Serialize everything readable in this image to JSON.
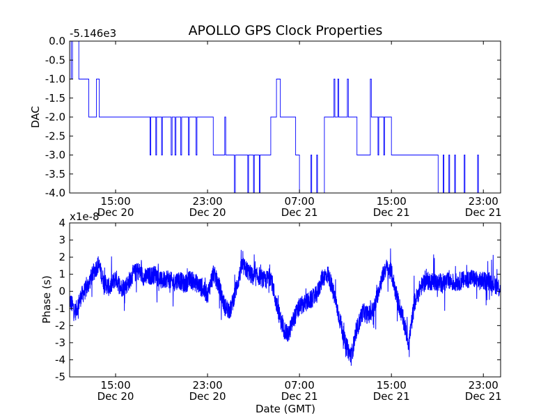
{
  "chart_data": [
    {
      "type": "line",
      "title": "APOLLO GPS Clock Properties",
      "offset_label": "-5.146e3",
      "xlabel": "",
      "ylabel": "DAC",
      "ylim": [
        -4.0,
        0.0
      ],
      "yticks": [
        "0.0",
        "-0.5",
        "-1.0",
        "-1.5",
        "-2.0",
        "-2.5",
        "-3.0",
        "-3.5",
        "-4.0"
      ],
      "xlim": [
        "2020-12-20 11:00",
        "2020-12-22 00:30"
      ],
      "xticks": [
        {
          "time": "2020-12-20 15:00",
          "time_label": "15:00",
          "date_label": "Dec 20"
        },
        {
          "time": "2020-12-20 23:00",
          "time_label": "23:00",
          "date_label": "Dec 20"
        },
        {
          "time": "2020-12-21 07:00",
          "time_label": "07:00",
          "date_label": "Dec 21"
        },
        {
          "time": "2020-12-21 15:00",
          "time_label": "15:00",
          "date_label": "Dec 21"
        },
        {
          "time": "2020-12-21 23:00",
          "time_label": "23:00",
          "date_label": "Dec 21"
        }
      ],
      "line_color": "#0000ff",
      "series": [
        {
          "x": [
            "2020-12-20 11:00",
            "2020-12-20 11:08",
            "2020-12-20 11:15",
            "2020-12-20 11:48",
            "2020-12-20 11:56",
            "2020-12-20 12:40",
            "2020-12-20 13:10",
            "2020-12-20 13:20",
            "2020-12-20 13:35",
            "2020-12-20 14:30",
            "2020-12-20 18:00",
            "2020-12-20 18:04",
            "2020-12-20 18:30",
            "2020-12-20 18:34",
            "2020-12-20 19:00",
            "2020-12-20 19:04",
            "2020-12-20 19:50",
            "2020-12-20 19:55",
            "2020-12-20 20:10",
            "2020-12-20 20:15",
            "2020-12-20 20:40",
            "2020-12-20 20:45",
            "2020-12-20 21:20",
            "2020-12-20 21:25",
            "2020-12-20 22:00",
            "2020-12-20 22:05",
            "2020-12-20 23:30",
            "2020-12-21 00:30",
            "2020-12-21 00:35",
            "2020-12-21 01:20",
            "2020-12-21 01:25",
            "2020-12-21 02:30",
            "2020-12-21 02:34",
            "2020-12-21 03:00",
            "2020-12-21 03:04",
            "2020-12-21 03:30",
            "2020-12-21 03:34",
            "2020-12-21 04:30",
            "2020-12-21 05:00",
            "2020-12-21 05:20",
            "2020-12-21 06:40",
            "2020-12-21 07:00",
            "2020-12-21 08:00",
            "2020-12-21 08:04",
            "2020-12-21 08:30",
            "2020-12-21 08:34",
            "2020-12-21 09:10",
            "2020-12-21 10:00",
            "2020-12-21 10:05",
            "2020-12-21 10:20",
            "2020-12-21 10:25",
            "2020-12-21 11:10",
            "2020-12-21 11:15",
            "2020-12-21 11:50",
            "2020-12-21 12:00",
            "2020-12-21 13:10",
            "2020-12-21 13:15",
            "2020-12-21 13:50",
            "2020-12-21 13:54",
            "2020-12-21 14:20",
            "2020-12-21 14:24",
            "2020-12-21 15:00",
            "2020-12-21 19:00",
            "2020-12-21 19:04",
            "2020-12-21 19:30",
            "2020-12-21 19:34",
            "2020-12-21 20:00",
            "2020-12-21 20:04",
            "2020-12-21 20:30",
            "2020-12-21 20:34",
            "2020-12-21 21:20",
            "2020-12-21 21:24",
            "2020-12-21 22:30",
            "2020-12-21 22:34",
            "2020-12-22 00:30"
          ],
          "y": [
            0.0,
            -1.0,
            0.0,
            -1.0,
            -1.0,
            -2.0,
            -2.0,
            -1.0,
            -2.0,
            -2.0,
            -3.0,
            -2.0,
            -3.0,
            -2.0,
            -3.0,
            -2.0,
            -3.0,
            -2.0,
            -3.0,
            -2.0,
            -3.0,
            -2.0,
            -3.0,
            -2.0,
            -3.0,
            -2.0,
            -3.0,
            -2.0,
            -3.0,
            -4.0,
            -3.0,
            -4.0,
            -3.0,
            -4.0,
            -3.0,
            -4.0,
            -3.0,
            -2.0,
            -1.0,
            -2.0,
            -3.0,
            -4.0,
            -3.0,
            -4.0,
            -3.0,
            -4.0,
            -2.0,
            -1.0,
            -2.0,
            -1.0,
            -2.0,
            -1.0,
            -2.0,
            -2.0,
            -3.0,
            -1.0,
            -2.0,
            -3.0,
            -2.0,
            -3.0,
            -2.0,
            -3.0,
            -3.0,
            -4.0,
            -3.0,
            -4.0,
            -3.0,
            -4.0,
            -3.0,
            -4.0,
            -3.0,
            -4.0,
            -3.0,
            -4.0,
            -3.0
          ]
        }
      ]
    },
    {
      "type": "line",
      "title": "",
      "offset_label": "x1e-8",
      "xlabel": "Date (GMT)",
      "ylabel": "Phase (s)",
      "ylim": [
        -5,
        4
      ],
      "yticks": [
        "4",
        "3",
        "2",
        "1",
        "0",
        "-1",
        "-2",
        "-3",
        "-4",
        "-5"
      ],
      "xlim": [
        "2020-12-20 11:00",
        "2020-12-22 00:30"
      ],
      "xticks": [
        {
          "time": "2020-12-20 15:00",
          "time_label": "15:00",
          "date_label": "Dec 20"
        },
        {
          "time": "2020-12-20 23:00",
          "time_label": "23:00",
          "date_label": "Dec 20"
        },
        {
          "time": "2020-12-21 07:00",
          "time_label": "07:00",
          "date_label": "Dec 21"
        },
        {
          "time": "2020-12-21 15:00",
          "time_label": "15:00",
          "date_label": "Dec 21"
        },
        {
          "time": "2020-12-21 23:00",
          "time_label": "23:00",
          "date_label": "Dec 21"
        }
      ],
      "line_color": "#0000ff",
      "series": [
        {
          "x": [
            "2020-12-20 11:00",
            "2020-12-20 11:30",
            "2020-12-20 12:00",
            "2020-12-20 12:30",
            "2020-12-20 13:00",
            "2020-12-20 13:30",
            "2020-12-20 14:00",
            "2020-12-20 14:30",
            "2020-12-20 15:00",
            "2020-12-20 15:30",
            "2020-12-20 16:00",
            "2020-12-20 16:30",
            "2020-12-20 17:00",
            "2020-12-20 17:30",
            "2020-12-20 18:00",
            "2020-12-20 18:30",
            "2020-12-20 19:00",
            "2020-12-20 19:30",
            "2020-12-20 20:00",
            "2020-12-20 20:30",
            "2020-12-20 21:00",
            "2020-12-20 21:30",
            "2020-12-20 22:00",
            "2020-12-20 22:30",
            "2020-12-20 23:00",
            "2020-12-20 23:30",
            "2020-12-21 00:00",
            "2020-12-21 00:30",
            "2020-12-21 01:00",
            "2020-12-21 01:30",
            "2020-12-21 02:00",
            "2020-12-21 02:30",
            "2020-12-21 03:00",
            "2020-12-21 03:30",
            "2020-12-21 04:00",
            "2020-12-21 04:30",
            "2020-12-21 05:00",
            "2020-12-21 05:30",
            "2020-12-21 06:00",
            "2020-12-21 06:30",
            "2020-12-21 07:00",
            "2020-12-21 07:30",
            "2020-12-21 08:00",
            "2020-12-21 08:30",
            "2020-12-21 09:00",
            "2020-12-21 09:30",
            "2020-12-21 10:00",
            "2020-12-21 10:30",
            "2020-12-21 11:00",
            "2020-12-21 11:30",
            "2020-12-21 12:00",
            "2020-12-21 12:30",
            "2020-12-21 13:00",
            "2020-12-21 13:30",
            "2020-12-21 14:00",
            "2020-12-21 14:30",
            "2020-12-21 15:00",
            "2020-12-21 15:30",
            "2020-12-21 16:00",
            "2020-12-21 16:30",
            "2020-12-21 17:00",
            "2020-12-21 17:30",
            "2020-12-21 18:00",
            "2020-12-21 18:30",
            "2020-12-21 19:00",
            "2020-12-21 19:30",
            "2020-12-21 20:00",
            "2020-12-21 20:30",
            "2020-12-21 21:00",
            "2020-12-21 21:30",
            "2020-12-21 22:00",
            "2020-12-21 22:30",
            "2020-12-21 23:00",
            "2020-12-21 23:30",
            "2020-12-22 00:00",
            "2020-12-22 00:30"
          ],
          "y": [
            -0.5,
            -1.2,
            -0.3,
            0.2,
            1.0,
            1.6,
            0.5,
            0.2,
            0.8,
            0.2,
            0.4,
            1.0,
            1.2,
            0.8,
            0.9,
            1.0,
            0.6,
            0.8,
            0.5,
            0.7,
            0.4,
            0.7,
            0.5,
            0.2,
            -0.2,
            1.1,
            0.3,
            -0.9,
            -1.1,
            0.2,
            1.5,
            1.2,
            0.8,
            0.9,
            0.6,
            0.9,
            -0.8,
            -2.0,
            -2.6,
            -1.6,
            -0.9,
            -0.7,
            -0.5,
            -0.2,
            0.8,
            1.0,
            -0.2,
            -1.6,
            -3.1,
            -3.8,
            -2.2,
            -1.2,
            -1.4,
            -1.0,
            0.4,
            1.4,
            1.1,
            -0.4,
            -1.6,
            -3.0,
            -0.7,
            0.2,
            0.6,
            0.6,
            0.5,
            0.5,
            0.6,
            0.5,
            0.6,
            0.7,
            0.8,
            0.6,
            0.6,
            0.6,
            0.4,
            0.2
          ]
        }
      ]
    }
  ]
}
